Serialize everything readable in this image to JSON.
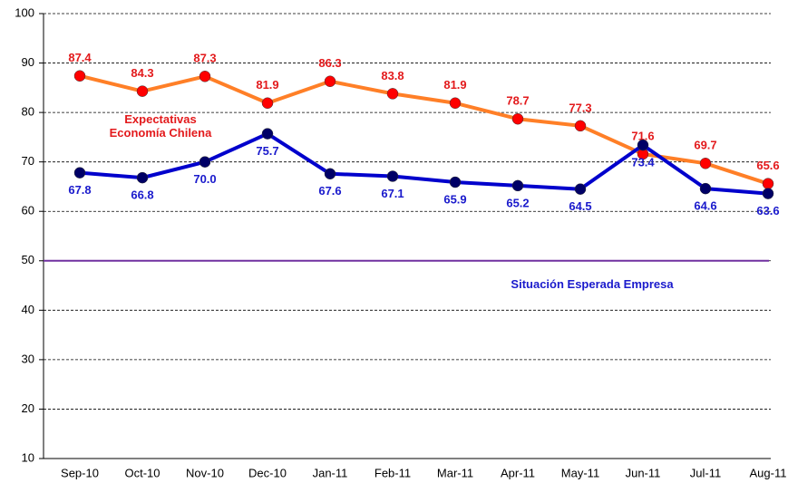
{
  "chart_data": {
    "type": "line",
    "categories": [
      "Sep-10",
      "Oct-10",
      "Nov-10",
      "Dec-10",
      "Jan-11",
      "Feb-11",
      "Mar-11",
      "Apr-11",
      "May-11",
      "Jun-11",
      "Jul-11",
      "Aug-11"
    ],
    "series": [
      {
        "name": "Expectativas Economía Chilena",
        "color": "#ff7f27",
        "marker_color": "#ff0000",
        "label_color": "#e31a1c",
        "values": [
          87.4,
          84.3,
          87.3,
          81.9,
          86.3,
          83.8,
          81.9,
          78.7,
          77.3,
          71.6,
          69.7,
          65.6
        ],
        "value_labels": [
          "87.4",
          "84.3",
          "87.3",
          "81.9",
          "86.3",
          "83.8",
          "81.9",
          "78.7",
          "77.3",
          "71.6",
          "69.7",
          "65.6"
        ]
      },
      {
        "name": "Situación Esperada Empresa",
        "color": "#0000cc",
        "marker_color": "#000066",
        "label_color": "#1a1acc",
        "values": [
          67.8,
          66.8,
          70.0,
          75.7,
          67.6,
          67.1,
          65.9,
          65.2,
          64.5,
          73.4,
          64.6,
          63.6
        ],
        "value_labels": [
          "67.8",
          "66.8",
          "70.0",
          "75.7",
          "67.6",
          "67.1",
          "65.9",
          "65.2",
          "64.5",
          "73.4",
          "64.6",
          "63.6"
        ]
      }
    ],
    "reference_line": {
      "value": 50,
      "color": "#7030a0"
    },
    "ylim": [
      10,
      100
    ],
    "yticks": [
      10,
      20,
      30,
      40,
      50,
      60,
      70,
      80,
      90,
      100
    ],
    "grid": true
  }
}
